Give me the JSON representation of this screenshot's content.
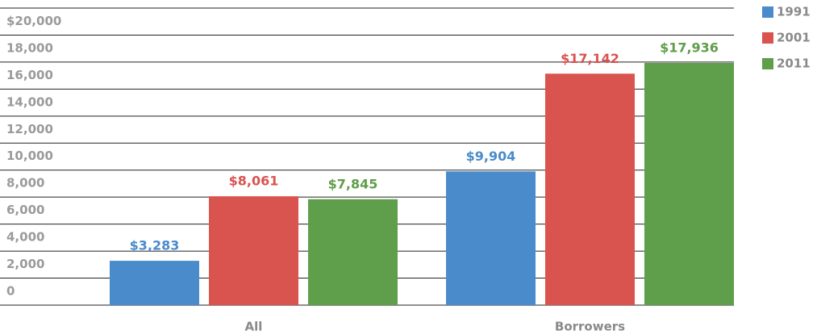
{
  "chart_data": {
    "type": "bar",
    "categories": [
      "All",
      "Borrowers"
    ],
    "series": [
      {
        "name": "1991",
        "color": "#4a8bcb",
        "values": [
          3283,
          9904
        ],
        "value_labels": [
          "$3,283",
          "$9,904"
        ]
      },
      {
        "name": "2001",
        "color": "#d9534f",
        "values": [
          8061,
          17142
        ],
        "value_labels": [
          "$8,061",
          "$17,142"
        ]
      },
      {
        "name": "2011",
        "color": "#5f9e4a",
        "values": [
          7845,
          17936
        ],
        "value_labels": [
          "$7,845",
          "$17,936"
        ]
      }
    ],
    "ylim": [
      0,
      22000
    ],
    "yticks": [
      0,
      {
        "value": 2000,
        "label": "2,000"
      },
      {
        "value": 4000,
        "label": "4,000"
      },
      {
        "value": 6000,
        "label": "6,000"
      },
      {
        "value": 8000,
        "label": "8,000"
      },
      {
        "value": 10000,
        "label": "10,000"
      },
      {
        "value": 12000,
        "label": "12,000"
      },
      {
        "value": 14000,
        "label": "14,000"
      },
      {
        "value": 16000,
        "label": "16,000"
      },
      {
        "value": 18000,
        "label": "18,000"
      },
      {
        "value": 20000,
        "label": "$20,000"
      }
    ],
    "grid": true,
    "legend": "right"
  }
}
